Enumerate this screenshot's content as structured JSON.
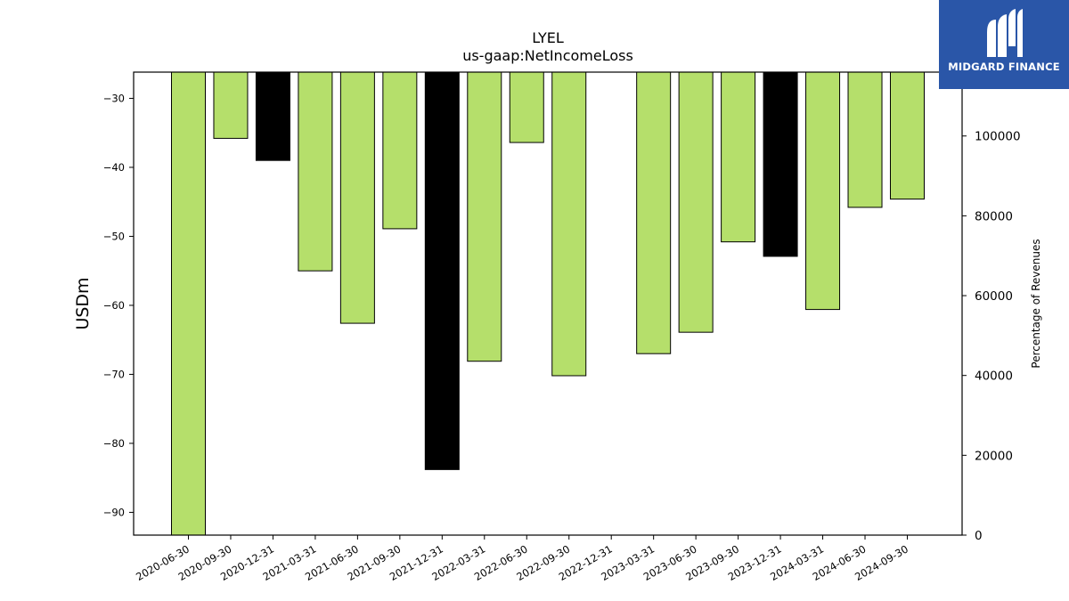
{
  "chart_data": {
    "type": "bar",
    "title": "LYEL",
    "subtitle": "us-gaap:NetIncomeLoss",
    "ylabel": "USDm",
    "y2label": "Percentage of Revenues",
    "categories": [
      "2020-06-30",
      "2020-09-30",
      "2020-12-31",
      "2021-03-31",
      "2021-06-30",
      "2021-09-30",
      "2021-12-31",
      "2022-03-31",
      "2022-06-30",
      "2022-09-30",
      "2022-12-31",
      "2023-03-31",
      "2023-06-30",
      "2023-09-30",
      "2023-12-31",
      "2024-03-31",
      "2024-06-30",
      "2024-09-30"
    ],
    "values": [
      -93.4,
      -35.8,
      -39.0,
      -55.0,
      -62.6,
      -48.9,
      -83.8,
      -68.1,
      -36.4,
      -70.2,
      null,
      -67.0,
      -63.9,
      -50.8,
      -52.9,
      -60.6,
      -45.8,
      -44.6
    ],
    "highlight": [
      false,
      false,
      true,
      false,
      false,
      false,
      true,
      false,
      false,
      false,
      false,
      false,
      false,
      false,
      true,
      false,
      false,
      false
    ],
    "ylim": [
      -93.3,
      -26.2
    ],
    "yticks": [
      -30,
      -40,
      -50,
      -60,
      -70,
      -80,
      -90
    ],
    "y2lim": [
      0,
      116000
    ],
    "y2ticks": [
      0,
      20000,
      40000,
      60000,
      80000,
      100000
    ],
    "colors": {
      "bar": "#b5df6b",
      "highlight": "#000000",
      "edge": "#000000"
    },
    "grid": false,
    "legend": "none"
  },
  "logo": {
    "text": "MIDGARD FINANCE",
    "icon": "midgard-logo-icon"
  }
}
